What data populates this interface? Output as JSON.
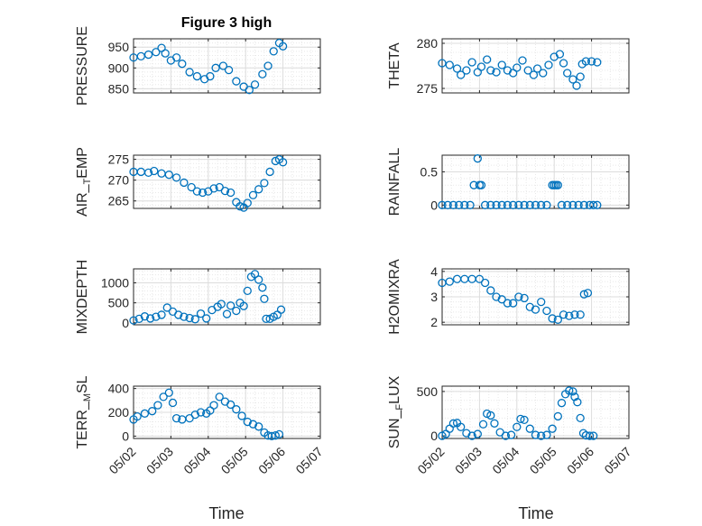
{
  "figure": {
    "title": "Figure 3 high"
  },
  "style": {
    "marker_color": "#0072BD",
    "grid_color": "#dcdcdc",
    "minor_grid_color": "#e8e8e8",
    "axis_color": "#262626"
  },
  "x_axis": {
    "label": "Time",
    "ticks": [
      {
        "value": 0,
        "label": "05/02"
      },
      {
        "value": 1,
        "label": "05/03"
      },
      {
        "value": 2,
        "label": "05/04"
      },
      {
        "value": 3,
        "label": "05/05"
      },
      {
        "value": 4,
        "label": "05/06"
      },
      {
        "value": 5,
        "label": "05/07"
      }
    ],
    "range": [
      0,
      5
    ]
  },
  "chart_data": [
    {
      "type": "scatter",
      "ylabel": "PRESSURE",
      "ylim": [
        840,
        970
      ],
      "yticks": [
        850,
        900,
        950
      ],
      "grid": true,
      "x": [
        0,
        0.2,
        0.4,
        0.6,
        0.75,
        0.85,
        1.0,
        1.15,
        1.3,
        1.5,
        1.7,
        1.9,
        2.05,
        2.2,
        2.4,
        2.55,
        2.75,
        2.95,
        3.1,
        3.25,
        3.45,
        3.6,
        3.75,
        3.9,
        4.0
      ],
      "y": [
        925,
        928,
        932,
        938,
        948,
        935,
        918,
        925,
        910,
        890,
        880,
        873,
        880,
        900,
        905,
        895,
        868,
        855,
        847,
        860,
        885,
        905,
        940,
        960,
        952
      ]
    },
    {
      "type": "scatter",
      "ylabel": "THETA",
      "ylim": [
        274.5,
        280.5
      ],
      "yticks": [
        275,
        280
      ],
      "grid": true,
      "x": [
        0,
        0.2,
        0.4,
        0.5,
        0.65,
        0.8,
        0.95,
        1.05,
        1.2,
        1.3,
        1.45,
        1.6,
        1.75,
        1.9,
        2.0,
        2.15,
        2.3,
        2.45,
        2.55,
        2.7,
        2.85,
        3.0,
        3.15,
        3.25,
        3.35,
        3.5,
        3.6,
        3.7,
        3.75,
        3.85,
        4.0,
        4.15
      ],
      "y": [
        277.8,
        277.6,
        277.2,
        276.5,
        277.0,
        277.9,
        276.8,
        277.4,
        278.2,
        277.0,
        276.8,
        277.6,
        277.0,
        276.7,
        277.3,
        278.1,
        277.0,
        276.5,
        277.2,
        276.7,
        277.6,
        278.5,
        278.8,
        277.8,
        276.7,
        276.0,
        275.3,
        276.3,
        277.7,
        278.0,
        278.0,
        277.9
      ]
    },
    {
      "type": "scatter",
      "ylabel": "AIR_TEMP",
      "ylim": [
        263.2,
        276
      ],
      "yticks": [
        265,
        270,
        275
      ],
      "grid": true,
      "x": [
        0,
        0.2,
        0.4,
        0.55,
        0.75,
        0.95,
        1.15,
        1.35,
        1.55,
        1.7,
        1.85,
        2.0,
        2.15,
        2.3,
        2.45,
        2.6,
        2.75,
        2.85,
        2.95,
        3.05,
        3.2,
        3.35,
        3.5,
        3.65,
        3.8,
        3.9,
        4.0
      ],
      "y": [
        272,
        272,
        271.8,
        272.2,
        271.6,
        271.3,
        270.6,
        269.4,
        268.3,
        267.3,
        267.0,
        267.3,
        268.0,
        268.3,
        267.4,
        267.0,
        264.7,
        263.7,
        263.4,
        264.5,
        266.4,
        267.8,
        269.3,
        272.0,
        274.6,
        275.0,
        274.3
      ]
    },
    {
      "type": "scatter",
      "ylabel": "RAINFALL",
      "ylim": [
        -0.05,
        0.75
      ],
      "yticks": [
        0,
        0.5
      ],
      "grid": true,
      "x": [
        0,
        0.15,
        0.3,
        0.45,
        0.6,
        0.75,
        0.85,
        0.95,
        1.0,
        1.05,
        1.15,
        1.3,
        1.45,
        1.6,
        1.75,
        1.9,
        2.05,
        2.2,
        2.35,
        2.5,
        2.65,
        2.8,
        2.95,
        3.0,
        3.05,
        3.1,
        3.2,
        3.35,
        3.5,
        3.65,
        3.8,
        3.95,
        4.05,
        4.15
      ],
      "y": [
        0,
        0,
        0,
        0,
        0,
        0,
        0.3,
        0.7,
        0.3,
        0.3,
        0,
        0,
        0,
        0,
        0,
        0,
        0,
        0,
        0,
        0,
        0,
        0,
        0.3,
        0.3,
        0.3,
        0.3,
        0,
        0,
        0,
        0,
        0,
        0,
        0,
        0
      ]
    },
    {
      "type": "scatter",
      "ylabel": "MIXDEPTH",
      "ylim": [
        -50,
        1350
      ],
      "yticks": [
        0,
        500,
        1000
      ],
      "grid": true,
      "x": [
        0,
        0.15,
        0.3,
        0.45,
        0.6,
        0.75,
        0.9,
        1.05,
        1.2,
        1.35,
        1.5,
        1.65,
        1.8,
        1.95,
        2.1,
        2.25,
        2.35,
        2.5,
        2.6,
        2.75,
        2.85,
        2.95,
        3.05,
        3.15,
        3.25,
        3.35,
        3.45,
        3.5,
        3.55,
        3.65,
        3.75,
        3.85,
        3.95
      ],
      "y": [
        60,
        100,
        160,
        110,
        150,
        200,
        380,
        280,
        200,
        150,
        120,
        90,
        230,
        110,
        320,
        400,
        470,
        220,
        430,
        300,
        500,
        420,
        800,
        1150,
        1220,
        1080,
        880,
        600,
        100,
        100,
        150,
        200,
        330
      ]
    },
    {
      "type": "scatter",
      "ylabel": "H2OMIXRA",
      "ylim": [
        1.9,
        4.1
      ],
      "yticks": [
        2,
        3,
        4
      ],
      "grid": true,
      "x": [
        0,
        0.2,
        0.4,
        0.6,
        0.8,
        1.0,
        1.15,
        1.3,
        1.45,
        1.6,
        1.75,
        1.9,
        2.05,
        2.2,
        2.35,
        2.5,
        2.65,
        2.8,
        2.95,
        3.1,
        3.25,
        3.4,
        3.55,
        3.7,
        3.8,
        3.9
      ],
      "y": [
        3.55,
        3.6,
        3.7,
        3.7,
        3.7,
        3.7,
        3.55,
        3.25,
        3.0,
        2.9,
        2.75,
        2.75,
        3.0,
        2.95,
        2.6,
        2.5,
        2.8,
        2.45,
        2.15,
        2.1,
        2.3,
        2.25,
        2.3,
        2.3,
        3.1,
        3.15
      ]
    },
    {
      "type": "scatter",
      "ylabel": "TERR_MSL",
      "ylim": [
        -20,
        420
      ],
      "yticks": [
        0,
        200,
        400
      ],
      "grid": true,
      "x": [
        0,
        0.1,
        0.3,
        0.5,
        0.65,
        0.8,
        0.95,
        1.05,
        1.15,
        1.3,
        1.5,
        1.65,
        1.8,
        1.95,
        2.05,
        2.15,
        2.3,
        2.45,
        2.6,
        2.75,
        2.9,
        3.05,
        3.2,
        3.35,
        3.5,
        3.6,
        3.7,
        3.8,
        3.9
      ],
      "y": [
        140,
        165,
        190,
        210,
        260,
        330,
        365,
        280,
        150,
        140,
        150,
        180,
        200,
        190,
        215,
        260,
        330,
        290,
        265,
        225,
        170,
        120,
        100,
        80,
        30,
        5,
        0,
        5,
        15
      ]
    },
    {
      "type": "scatter",
      "ylabel": "SUN_FLUX",
      "ylim": [
        -30,
        560
      ],
      "yticks": [
        0,
        500
      ],
      "grid": true,
      "x": [
        0,
        0.1,
        0.2,
        0.3,
        0.4,
        0.5,
        0.65,
        0.8,
        0.95,
        1.1,
        1.2,
        1.3,
        1.4,
        1.55,
        1.7,
        1.85,
        2.0,
        2.1,
        2.2,
        2.35,
        2.5,
        2.65,
        2.8,
        2.95,
        3.1,
        3.2,
        3.3,
        3.4,
        3.5,
        3.55,
        3.62,
        3.7,
        3.78,
        3.85,
        3.95,
        4.05
      ],
      "y": [
        0,
        20,
        80,
        140,
        145,
        100,
        30,
        0,
        20,
        130,
        250,
        230,
        140,
        40,
        0,
        10,
        100,
        190,
        180,
        80,
        10,
        0,
        10,
        80,
        220,
        370,
        470,
        510,
        500,
        440,
        380,
        200,
        30,
        5,
        0,
        0
      ]
    }
  ]
}
